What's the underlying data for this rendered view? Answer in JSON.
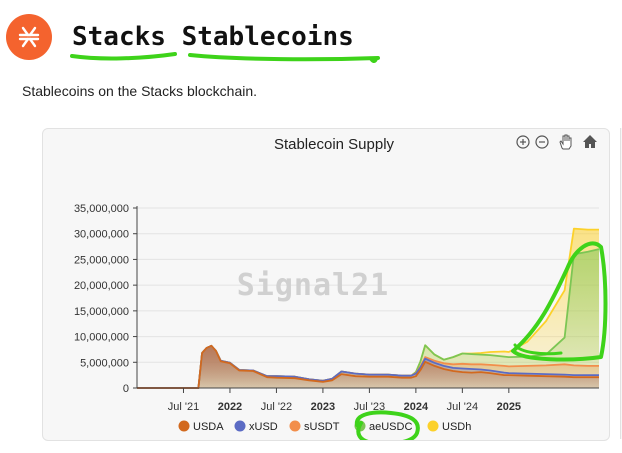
{
  "header": {
    "title_words": [
      "Stacks",
      "Stablecoins"
    ],
    "subtitle": "Stablecoins on the Stacks blockchain."
  },
  "colors": {
    "logo": "#f4632e",
    "highlight": "#3ed31a"
  },
  "toolbar": {
    "icons": [
      "zoom-in-icon",
      "zoom-out-icon",
      "pan-hand-icon",
      "home-icon"
    ]
  },
  "watermark": "Signal21",
  "chart_data": {
    "type": "area",
    "title": "Stablecoin Supply",
    "xlabel": "",
    "ylabel": "",
    "ylim": [
      0,
      35000000
    ],
    "xlim": [
      2021.0,
      2025.97
    ],
    "yticks": [
      0,
      5000000,
      10000000,
      15000000,
      20000000,
      25000000,
      30000000,
      35000000
    ],
    "ytick_labels": [
      "0",
      "5,000,000",
      "10,000,000",
      "15,000,000",
      "20,000,000",
      "25,000,000",
      "30,000,000",
      "35,000,000"
    ],
    "xticks": [
      2021.5,
      2022.0,
      2022.5,
      2023.0,
      2023.5,
      2024.0,
      2024.5,
      2025.0
    ],
    "xtick_labels": [
      "Jul '21",
      "2022",
      "Jul '22",
      "2023",
      "Jul '23",
      "2024",
      "Jul '24",
      "2025"
    ],
    "grid": true,
    "legend_position": "bottom",
    "series": [
      {
        "name": "USDA",
        "color": "#d2691e",
        "x": [
          2021.0,
          2021.66,
          2021.7,
          2021.75,
          2021.8,
          2021.85,
          2021.9,
          2022.0,
          2022.1,
          2022.25,
          2022.4,
          2022.5,
          2022.7,
          2022.85,
          2023.0,
          2023.1,
          2023.2,
          2023.35,
          2023.5,
          2023.7,
          2023.85,
          2023.95,
          2024.0,
          2024.05,
          2024.1,
          2024.2,
          2024.3,
          2024.4,
          2024.5,
          2024.6,
          2024.7,
          2024.8,
          2024.95,
          2025.0,
          2025.2,
          2025.4,
          2025.6,
          2025.7,
          2025.85,
          2025.97
        ],
        "values": [
          0,
          0,
          6800000,
          7800000,
          8200000,
          7200000,
          5200000,
          4800000,
          3400000,
          3300000,
          2100000,
          2000000,
          1900000,
          1500000,
          1200000,
          1500000,
          2700000,
          2300000,
          2200000,
          2200000,
          2000000,
          2000000,
          2300000,
          3500000,
          5100000,
          4300000,
          3700000,
          3300000,
          3100000,
          3000000,
          3100000,
          2900000,
          2500000,
          2500000,
          2400000,
          2300000,
          2200000,
          2100000,
          2100000,
          2100000
        ]
      },
      {
        "name": "xUSD",
        "color": "#5b6bc4",
        "x": [
          2021.0,
          2021.66,
          2021.7,
          2021.75,
          2021.8,
          2021.85,
          2021.9,
          2022.0,
          2022.1,
          2022.25,
          2022.4,
          2022.5,
          2022.7,
          2022.85,
          2023.0,
          2023.1,
          2023.2,
          2023.35,
          2023.5,
          2023.7,
          2023.85,
          2023.95,
          2024.0,
          2024.05,
          2024.1,
          2024.2,
          2024.3,
          2024.4,
          2024.5,
          2024.6,
          2024.7,
          2024.8,
          2024.95,
          2025.0,
          2025.2,
          2025.4,
          2025.6,
          2025.7,
          2025.85,
          2025.97
        ],
        "values": [
          0,
          0,
          6800000,
          7800000,
          8200000,
          7200000,
          5300000,
          4900000,
          3500000,
          3400000,
          2300000,
          2300000,
          2200000,
          1700000,
          1400000,
          1800000,
          3200000,
          2800000,
          2600000,
          2600000,
          2400000,
          2400000,
          2800000,
          4000000,
          5700000,
          4900000,
          4300000,
          3900000,
          3800000,
          3700000,
          3600000,
          3400000,
          3000000,
          2900000,
          2800000,
          2700000,
          2600000,
          2500000,
          2500000,
          2500000
        ]
      },
      {
        "name": "sUSDT",
        "color": "#f28e4b",
        "x": [
          2021.0,
          2021.66,
          2021.7,
          2021.75,
          2021.8,
          2021.85,
          2021.9,
          2022.0,
          2022.1,
          2022.25,
          2022.4,
          2022.5,
          2022.7,
          2022.85,
          2023.0,
          2023.1,
          2023.2,
          2023.35,
          2023.5,
          2023.7,
          2023.85,
          2023.95,
          2024.0,
          2024.05,
          2024.1,
          2024.2,
          2024.3,
          2024.4,
          2024.5,
          2024.6,
          2024.7,
          2024.8,
          2024.95,
          2025.0,
          2025.2,
          2025.4,
          2025.6,
          2025.7,
          2025.85,
          2025.97
        ],
        "values": [
          0,
          0,
          6800000,
          7800000,
          8200000,
          7200000,
          5300000,
          4900000,
          3500000,
          3400000,
          2300000,
          2300000,
          2200000,
          1700000,
          1400000,
          1800000,
          3200000,
          2800000,
          2600000,
          2600000,
          2400000,
          2400000,
          2900000,
          4200000,
          6000000,
          5300000,
          4800000,
          4600000,
          4700000,
          4600000,
          4600000,
          4500000,
          4300000,
          4200000,
          4300000,
          4400000,
          4600000,
          4400000,
          4300000,
          4300000
        ]
      },
      {
        "name": "aeUSDC",
        "color": "#7cc654",
        "x": [
          2021.0,
          2021.66,
          2021.7,
          2021.75,
          2021.8,
          2021.85,
          2021.9,
          2022.0,
          2022.1,
          2022.25,
          2022.4,
          2022.5,
          2022.7,
          2022.85,
          2023.0,
          2023.1,
          2023.2,
          2023.35,
          2023.5,
          2023.7,
          2023.85,
          2023.95,
          2024.0,
          2024.05,
          2024.1,
          2024.2,
          2024.3,
          2024.4,
          2024.5,
          2024.6,
          2024.7,
          2024.8,
          2024.95,
          2025.0,
          2025.2,
          2025.4,
          2025.6,
          2025.7,
          2025.85,
          2025.97
        ],
        "values": [
          0,
          0,
          6800000,
          7800000,
          8200000,
          7200000,
          5300000,
          4900000,
          3500000,
          3400000,
          2300000,
          2300000,
          2200000,
          1700000,
          1400000,
          1800000,
          3200000,
          2800000,
          2600000,
          2600000,
          2400000,
          2400000,
          3100000,
          5200000,
          8300000,
          6500000,
          5500000,
          6000000,
          6700000,
          6600000,
          6500000,
          6400000,
          6100000,
          6000000,
          6100000,
          6500000,
          9800000,
          26000000,
          26500000,
          27000000
        ]
      },
      {
        "name": "USDh",
        "color": "#fcd12a",
        "x": [
          2021.0,
          2021.66,
          2021.7,
          2021.75,
          2021.8,
          2021.85,
          2021.9,
          2022.0,
          2022.1,
          2022.25,
          2022.4,
          2022.5,
          2022.7,
          2022.85,
          2023.0,
          2023.1,
          2023.2,
          2023.35,
          2023.5,
          2023.7,
          2023.85,
          2023.95,
          2024.0,
          2024.05,
          2024.1,
          2024.2,
          2024.3,
          2024.4,
          2024.5,
          2024.6,
          2024.7,
          2024.8,
          2024.95,
          2025.0,
          2025.2,
          2025.4,
          2025.6,
          2025.7,
          2025.85,
          2025.97
        ],
        "values": [
          0,
          0,
          6800000,
          7800000,
          8200000,
          7200000,
          5300000,
          4900000,
          3500000,
          3400000,
          2300000,
          2300000,
          2200000,
          1700000,
          1400000,
          1800000,
          3200000,
          2800000,
          2600000,
          2600000,
          2400000,
          2400000,
          3100000,
          5200000,
          8300000,
          6500000,
          5500000,
          6000000,
          6700000,
          6700000,
          6800000,
          7000000,
          7100000,
          7000000,
          9000000,
          13000000,
          19000000,
          31000000,
          30800000,
          30800000
        ]
      }
    ]
  }
}
